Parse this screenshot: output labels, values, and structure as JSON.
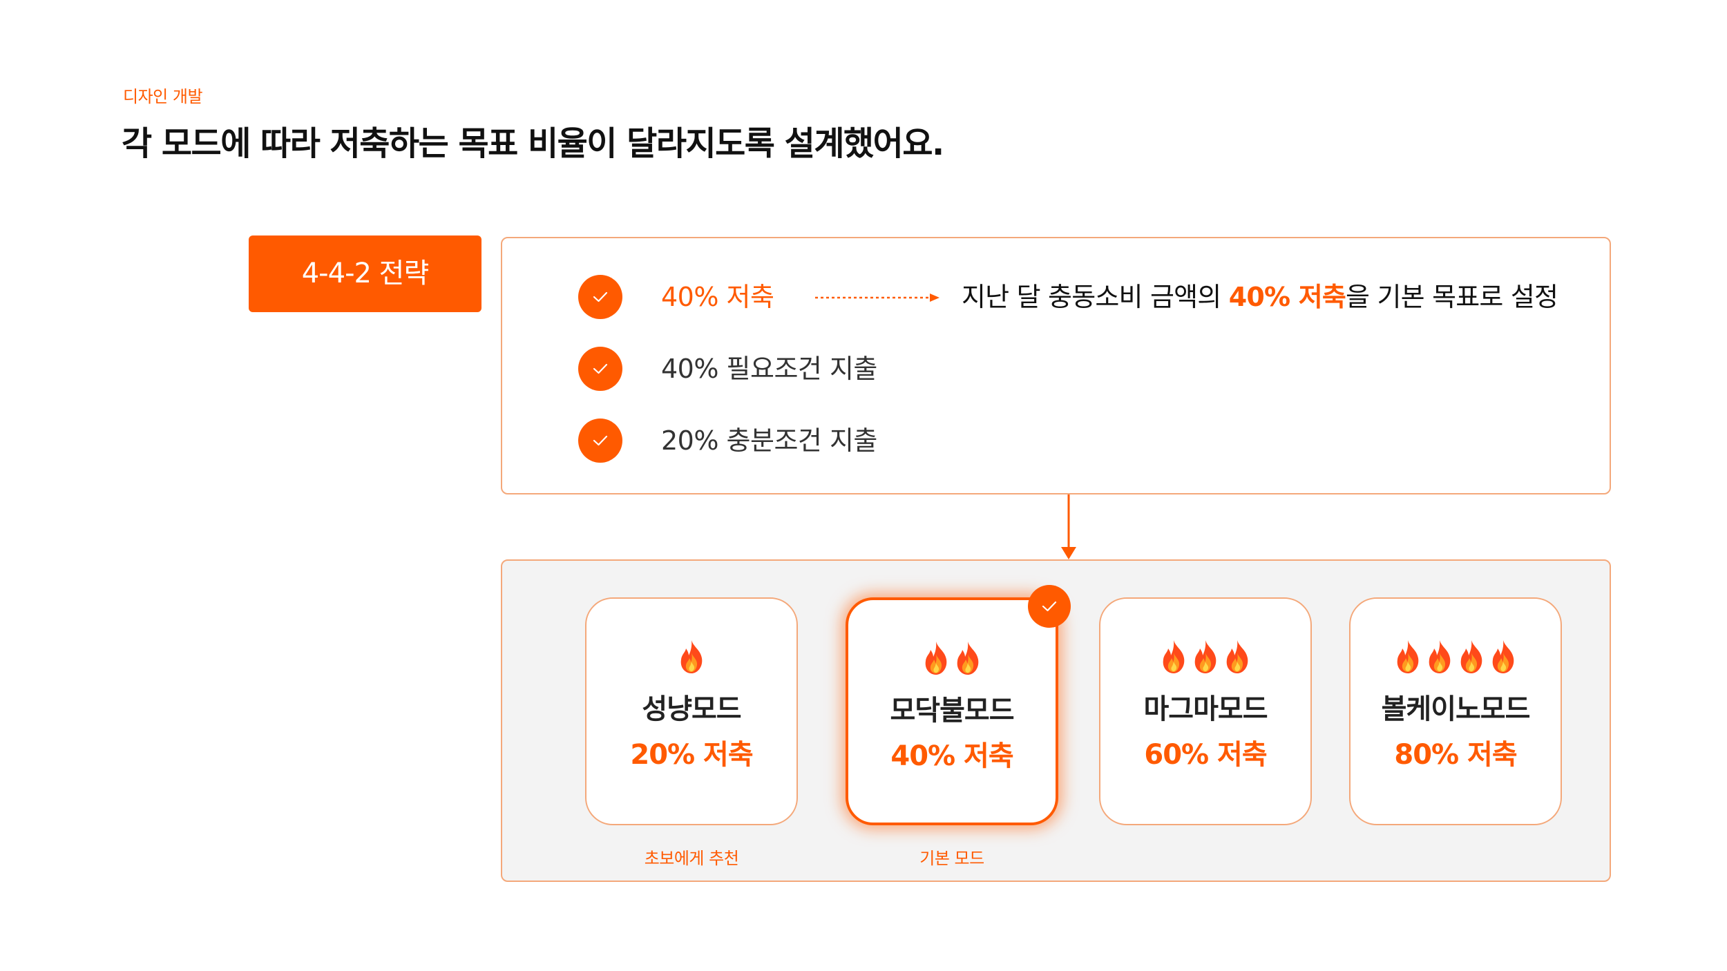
{
  "section_label": "디자인 개발",
  "headline": "각 모드에 따라 저축하는 목표 비율이 달라지도록 설계했어요.",
  "strategy_tag": "4-4-2 전략",
  "rules": [
    {
      "text": "40% 저축",
      "desc_prefix": "지난 달 충동소비 금액의 ",
      "desc_highlight": "40% 저축",
      "desc_suffix": "을 기본 목표로 설정"
    },
    {
      "text": "40% 필요조건 지출"
    },
    {
      "text": "20% 충분조건 지출"
    }
  ],
  "modes": [
    {
      "flames": 1,
      "name": "성냥모드",
      "rate": "20% 저축",
      "caption": "초보에게 추천",
      "selected": false
    },
    {
      "flames": 2,
      "name": "모닥불모드",
      "rate": "40% 저축",
      "caption": "기본 모드",
      "selected": true
    },
    {
      "flames": 3,
      "name": "마그마모드",
      "rate": "60% 저축",
      "caption": "",
      "selected": false
    },
    {
      "flames": 4,
      "name": "볼케이노모드",
      "rate": "80% 저축",
      "caption": "",
      "selected": false
    }
  ],
  "icons": {
    "check": "check-icon",
    "flame": "flame-icon",
    "arrow": "arrow-icon"
  },
  "colors": {
    "accent": "#ff5a00",
    "border": "#f4a87a",
    "panel_bg": "#f3f3f3"
  }
}
